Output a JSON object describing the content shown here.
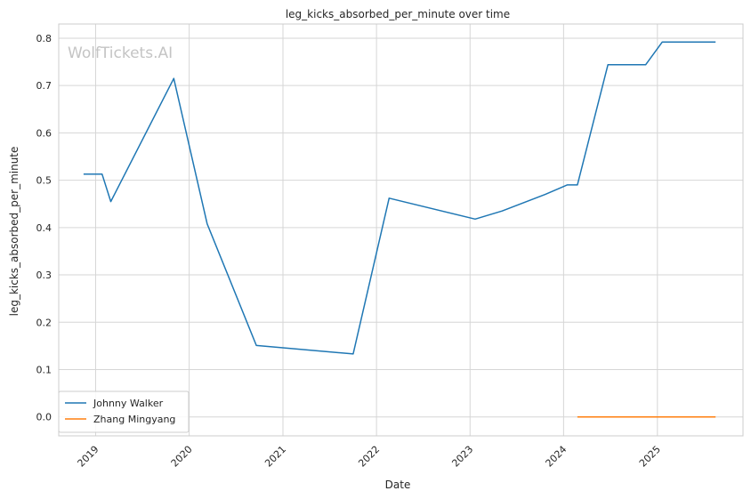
{
  "chart_data": {
    "type": "line",
    "title": "leg_kicks_absorbed_per_minute over time",
    "xlabel": "Date",
    "ylabel": "leg_kicks_absorbed_per_minute",
    "watermark": "WolfTickets.AI",
    "x_ticks": [
      "2019",
      "2020",
      "2021",
      "2022",
      "2023",
      "2024",
      "2025"
    ],
    "y_ticks": [
      "0.0",
      "0.1",
      "0.2",
      "0.3",
      "0.4",
      "0.5",
      "0.6",
      "0.7",
      "0.8"
    ],
    "xlim": [
      "2018-08-10",
      "2025-12-01"
    ],
    "ylim": [
      -0.04,
      0.83
    ],
    "grid": true,
    "legend_position": "lower-left",
    "series": [
      {
        "name": "Johnny Walker",
        "color": "#1f77b4",
        "points": [
          [
            "2018-11-15",
            0.513
          ],
          [
            "2019-01-26",
            0.513
          ],
          [
            "2019-03-01",
            0.455
          ],
          [
            "2019-11-02",
            0.715
          ],
          [
            "2020-03-11",
            0.408
          ],
          [
            "2020-09-19",
            0.151
          ],
          [
            "2021-10-02",
            0.133
          ],
          [
            "2022-02-19",
            0.462
          ],
          [
            "2023-01-21",
            0.418
          ],
          [
            "2023-05-06",
            0.435
          ],
          [
            "2023-10-21",
            0.47
          ],
          [
            "2024-01-15",
            0.49
          ],
          [
            "2024-02-24",
            0.49
          ],
          [
            "2024-06-22",
            0.744
          ],
          [
            "2024-11-16",
            0.744
          ],
          [
            "2025-01-20",
            0.792
          ],
          [
            "2025-08-16",
            0.792
          ]
        ]
      },
      {
        "name": "Zhang Mingyang",
        "color": "#ff7f0e",
        "points": [
          [
            "2024-02-24",
            0.0
          ],
          [
            "2025-08-16",
            0.0
          ]
        ]
      }
    ]
  }
}
